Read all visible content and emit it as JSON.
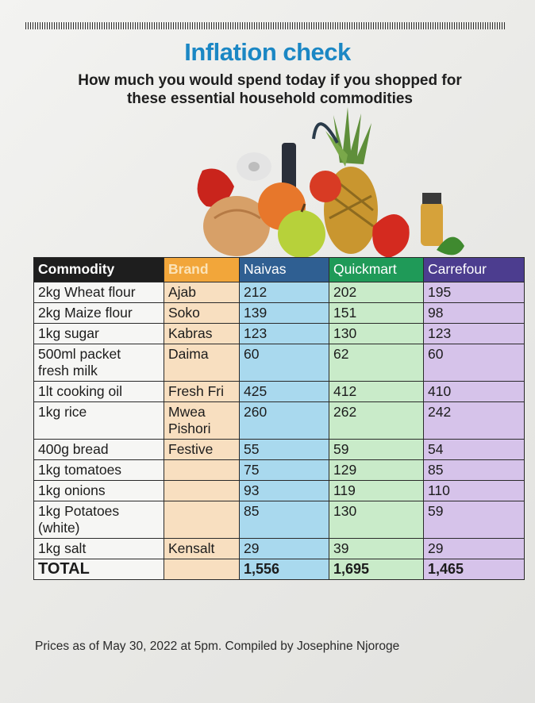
{
  "title": "Inflation check",
  "subtitle_line1": "How much you would spend today if you shopped for",
  "subtitle_line2": "these essential household commodities",
  "table": {
    "headers": [
      "Commodity",
      "Brand",
      "Naivas",
      "Quickmart",
      "Carrefour"
    ],
    "rows": [
      {
        "commodity": [
          "2kg Wheat flour"
        ],
        "brand": [
          "Ajab"
        ],
        "naivas": "212",
        "quickmart": "202",
        "carrefour": "195"
      },
      {
        "commodity": [
          "2kg Maize flour"
        ],
        "brand": [
          "Soko"
        ],
        "naivas": "139",
        "quickmart": "151",
        "carrefour": "98"
      },
      {
        "commodity": [
          "1kg sugar"
        ],
        "brand": [
          "Kabras"
        ],
        "naivas": "123",
        "quickmart": "130",
        "carrefour": "123"
      },
      {
        "commodity": [
          "500ml packet",
          "fresh milk"
        ],
        "brand": [
          "Daima"
        ],
        "naivas": "60",
        "quickmart": "62",
        "carrefour": "60"
      },
      {
        "commodity": [
          "1lt cooking oil"
        ],
        "brand": [
          "Fresh Fri"
        ],
        "naivas": "425",
        "quickmart": "412",
        "carrefour": "410"
      },
      {
        "commodity": [
          "1kg rice"
        ],
        "brand": [
          "Mwea",
          "Pishori"
        ],
        "naivas": "260",
        "quickmart": "262",
        "carrefour": "242"
      },
      {
        "commodity": [
          "400g bread"
        ],
        "brand": [
          "Festive"
        ],
        "naivas": "55",
        "quickmart": "59",
        "carrefour": "54"
      },
      {
        "commodity": [
          "1kg tomatoes"
        ],
        "brand": [
          ""
        ],
        "naivas": "75",
        "quickmart": "129",
        "carrefour": "85"
      },
      {
        "commodity": [
          "1kg onions"
        ],
        "brand": [
          ""
        ],
        "naivas": "93",
        "quickmart": "119",
        "carrefour": "110"
      },
      {
        "commodity": [
          "1kg Potatoes",
          "(white)"
        ],
        "brand": [
          ""
        ],
        "naivas": "85",
        "quickmart": "130",
        "carrefour": "59"
      },
      {
        "commodity": [
          "1kg salt"
        ],
        "brand": [
          "Kensalt"
        ],
        "naivas": "29",
        "quickmart": "39",
        "carrefour": "29"
      }
    ],
    "total": {
      "label": "TOTAL",
      "naivas": "1,556",
      "quickmart": "1,695",
      "carrefour": "1,465"
    }
  },
  "footnote": "Prices as of May 30, 2022 at 5pm. Compiled by Josephine Njoroge",
  "colors": {
    "title": "#1b87c4",
    "brand_header": "#f2a63a",
    "naivas_header": "#2f5f92",
    "quickmart_header": "#1f9a58",
    "carrefour_header": "#4c3d8f",
    "naivas_col": "#a9d9ee",
    "quickmart_col": "#c9ebc9",
    "carrefour_col": "#d6c3ea",
    "brand_col": "#f8dfc0"
  }
}
